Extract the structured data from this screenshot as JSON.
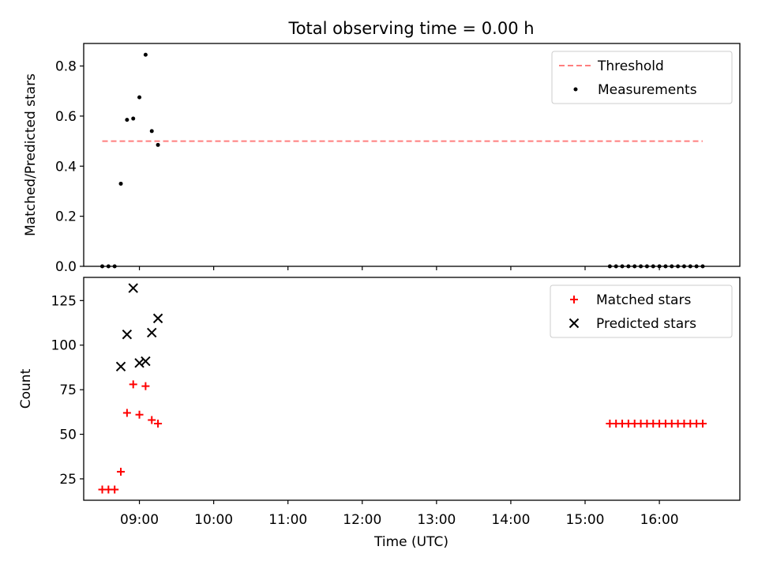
{
  "title": "Total observing time = 0.00 h",
  "colors": {
    "threshold": "#ff7f7f",
    "measurements": "#000000",
    "matched": "#ff0000",
    "predicted": "#000000"
  },
  "chart_data": [
    {
      "type": "scatter",
      "panel": "top",
      "title": "Total observing time = 0.00 h",
      "ylabel": "Matched/Predicted stars",
      "xlabel": "",
      "xlim": [
        "08:15",
        "17:05"
      ],
      "ylim": [
        0,
        0.89
      ],
      "yticks": [
        0.0,
        0.2,
        0.4,
        0.6,
        0.8
      ],
      "ytick_labels": [
        "0.0",
        "0.2",
        "0.4",
        "0.6",
        "0.8"
      ],
      "grid": false,
      "legend_position": "top-right",
      "series": [
        {
          "name": "Threshold",
          "kind": "dashed-line",
          "color": "#ff7f7f",
          "x": [
            "08:30",
            "16:35"
          ],
          "y": [
            0.5,
            0.5
          ]
        },
        {
          "name": "Measurements",
          "kind": "dots",
          "color": "#000000",
          "x": [
            "08:30",
            "08:35",
            "08:40",
            "08:45",
            "08:50",
            "08:55",
            "09:00",
            "09:05",
            "09:10",
            "09:15",
            "15:20",
            "15:25",
            "15:30",
            "15:35",
            "15:40",
            "15:45",
            "15:50",
            "15:55",
            "16:00",
            "16:05",
            "16:10",
            "16:15",
            "16:20",
            "16:25",
            "16:30",
            "16:35"
          ],
          "y": [
            0,
            0,
            0,
            0.33,
            0.585,
            0.59,
            0.675,
            0.845,
            0.54,
            0.485,
            0,
            0,
            0,
            0,
            0,
            0,
            0,
            0,
            0,
            0,
            0,
            0,
            0,
            0,
            0,
            0
          ]
        }
      ]
    },
    {
      "type": "scatter",
      "panel": "bottom",
      "xlabel": "Time (UTC)",
      "ylabel": "Count",
      "xlim": [
        "08:15",
        "17:05"
      ],
      "ylim": [
        13,
        138
      ],
      "yticks": [
        25,
        50,
        75,
        100,
        125
      ],
      "ytick_labels": [
        "25",
        "50",
        "75",
        "100",
        "125"
      ],
      "xticks": [
        "09:00",
        "10:00",
        "11:00",
        "12:00",
        "13:00",
        "14:00",
        "15:00",
        "16:00"
      ],
      "xtick_labels": [
        "09:00",
        "10:00",
        "11:00",
        "12:00",
        "13:00",
        "14:00",
        "15:00",
        "16:00"
      ],
      "grid": false,
      "legend_position": "top-right",
      "series": [
        {
          "name": "Matched stars",
          "marker": "plus",
          "color": "#ff0000",
          "x": [
            "08:30",
            "08:35",
            "08:40",
            "08:45",
            "08:50",
            "08:55",
            "09:00",
            "09:05",
            "09:10",
            "09:15",
            "15:20",
            "15:25",
            "15:30",
            "15:35",
            "15:40",
            "15:45",
            "15:50",
            "15:55",
            "16:00",
            "16:05",
            "16:10",
            "16:15",
            "16:20",
            "16:25",
            "16:30",
            "16:35"
          ],
          "y": [
            19,
            19,
            19,
            29,
            62,
            78,
            61,
            77,
            58,
            56,
            56,
            56,
            56,
            56,
            56,
            56,
            56,
            56,
            56,
            56,
            56,
            56,
            56,
            56,
            56,
            56
          ]
        },
        {
          "name": "Predicted stars",
          "marker": "x",
          "color": "#000000",
          "x": [
            "08:45",
            "08:50",
            "08:55",
            "09:00",
            "09:05",
            "09:10",
            "09:15"
          ],
          "y": [
            88,
            106,
            132,
            90,
            91,
            107,
            115
          ]
        }
      ]
    }
  ]
}
